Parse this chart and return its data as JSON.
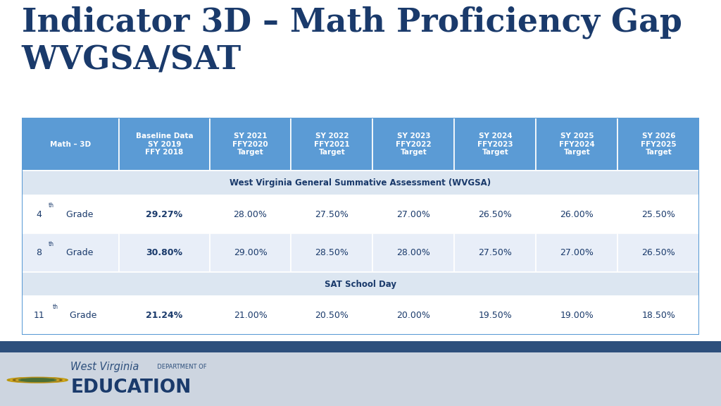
{
  "title_line1": "Indicator 3D – Math Proficiency Gap",
  "title_line2": "WVGSA/SAT",
  "title_color": "#1a3a6b",
  "bg_color": "#FFFFFF",
  "footer_bg": "#cdd5e0",
  "footer_stripe_color": "#2d4f7c",
  "header_bg": "#5b9bd5",
  "header_text_color": "#FFFFFF",
  "section_bg": "#dce6f1",
  "section_text_color": "#1a3a6b",
  "row_bg1": "#FFFFFF",
  "row_bg2": "#e8eef8",
  "table_text_color": "#1a3a6b",
  "col_headers": [
    "Math – 3D",
    "Baseline Data\nSY 2019\nFFY 2018",
    "SY 2021\nFFY2020\nTarget",
    "SY 2022\nFFY2021\nTarget",
    "SY 2023\nFFY2022\nTarget",
    "SY 2024\nFFY2023\nTarget",
    "SY 2025\nFFY2024\nTarget",
    "SY 2026\nFFY2025\nTarget"
  ],
  "section_wvgsa": "West Virginia General Summative Assessment (WVGSA)",
  "section_sat": "SAT School Day",
  "grade_rows": [
    {
      "grade": "4",
      "sup": "th",
      "values": [
        "29.27%",
        "28.00%",
        "27.50%",
        "27.00%",
        "26.50%",
        "26.00%",
        "25.50%"
      ]
    },
    {
      "grade": "8",
      "sup": "th",
      "values": [
        "30.80%",
        "29.00%",
        "28.50%",
        "28.00%",
        "27.50%",
        "27.00%",
        "26.50%"
      ]
    },
    {
      "grade": "11",
      "sup": "th",
      "values": [
        "21.24%",
        "21.00%",
        "20.50%",
        "20.00%",
        "19.50%",
        "19.00%",
        "18.50%"
      ]
    }
  ]
}
